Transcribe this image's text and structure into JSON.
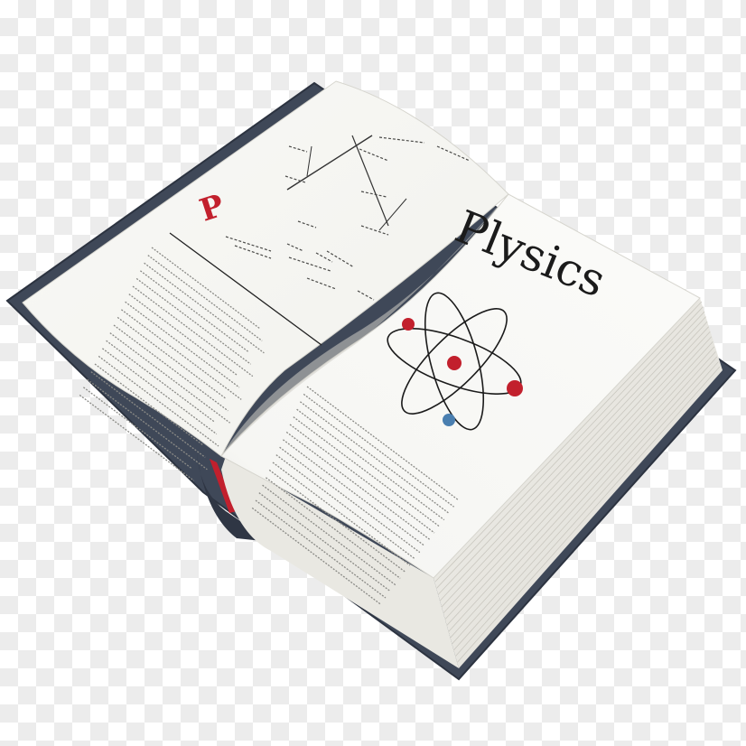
{
  "book": {
    "right_page": {
      "title": "Plysics"
    },
    "left_page": {
      "drop_cap": "P"
    }
  },
  "colors": {
    "cover": "#414a5a",
    "page": "#f7f7f4",
    "page_edge": "#e6e5df",
    "accent_red": "#c2202d",
    "accent_blue": "#4a7fb0",
    "ink": "#1b1b1b"
  },
  "icons": {
    "atom": "atom-icon"
  }
}
